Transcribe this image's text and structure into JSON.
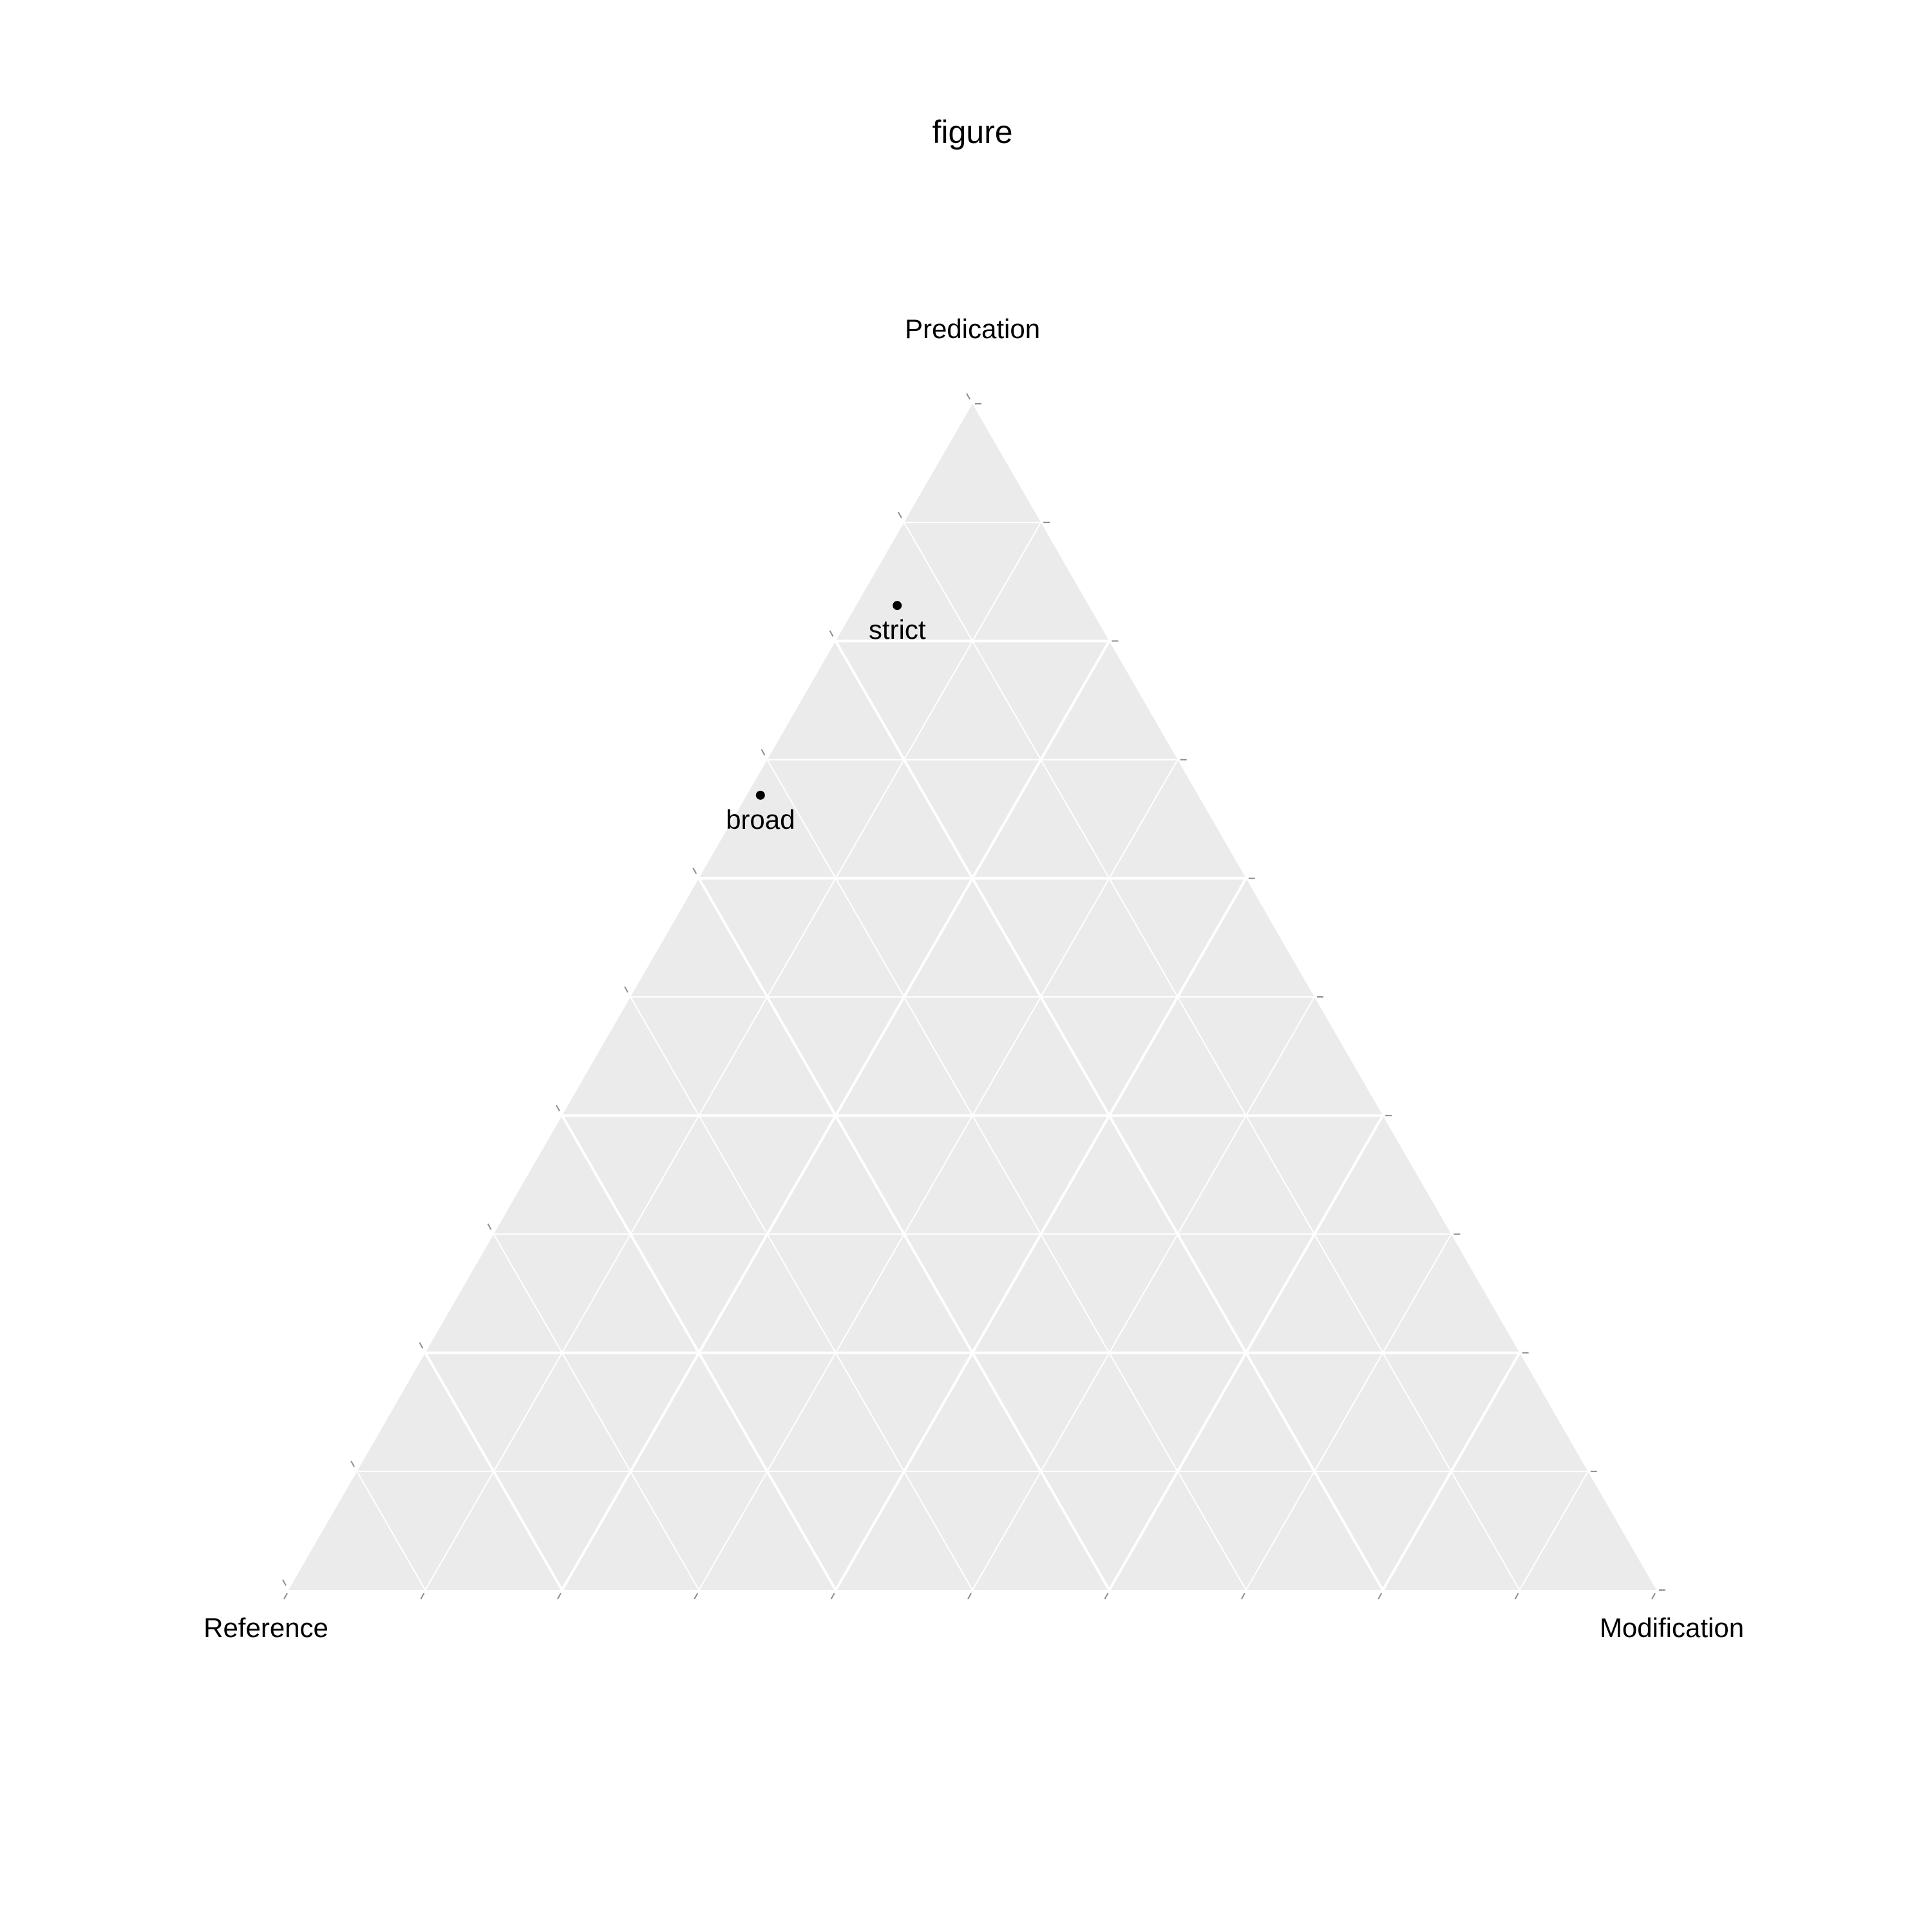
{
  "chart_data": {
    "type": "scatter",
    "subtype": "ternary",
    "title": "figure",
    "axes": {
      "top": "Predication",
      "left": "Reference",
      "right": "Modification"
    },
    "grid": true,
    "grid_major_step": 0.2,
    "grid_minor_step": 0.1,
    "points": [
      {
        "label": "strict",
        "Predication": 0.83,
        "Reference": 0.14,
        "Modification": 0.03
      },
      {
        "label": "broad",
        "Predication": 0.67,
        "Reference": 0.32,
        "Modification": 0.01
      }
    ],
    "colors": {
      "panel": "#ebebeb",
      "grid": "#ffffff",
      "point": "#000000",
      "tick": "#8c8c8c"
    }
  }
}
